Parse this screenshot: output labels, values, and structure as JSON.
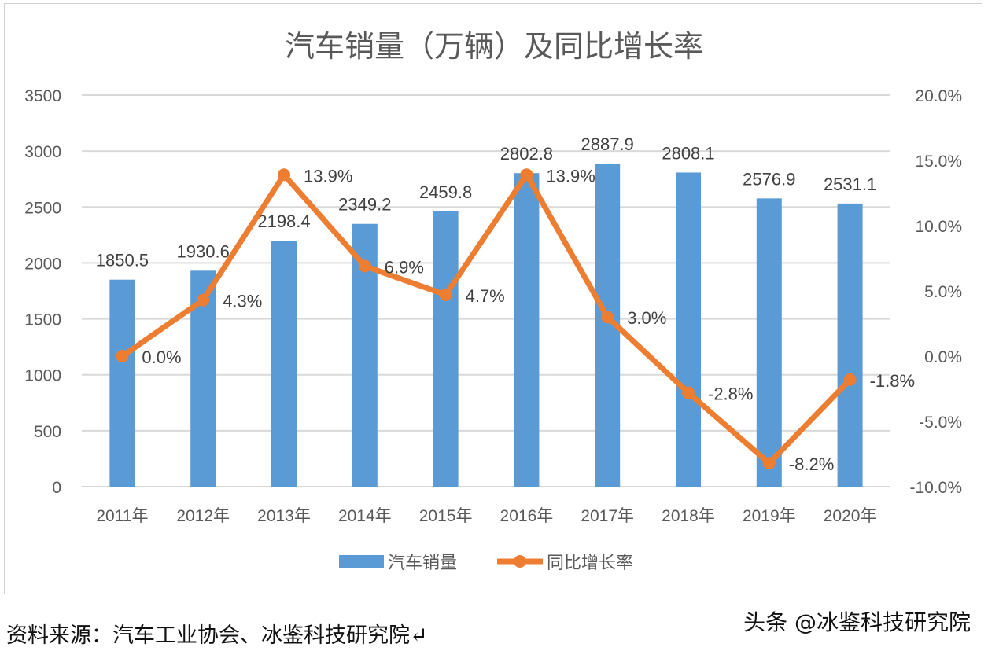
{
  "chart_data": {
    "type": "bar+line",
    "title": "汽车销量（万辆）及同比增长率",
    "categories": [
      "2011年",
      "2012年",
      "2013年",
      "2014年",
      "2015年",
      "2016年",
      "2017年",
      "2018年",
      "2019年",
      "2020年"
    ],
    "series": [
      {
        "name": "汽车销量",
        "type": "bar",
        "axis": "left",
        "color": "#5B9BD5",
        "values": [
          1850.5,
          1930.6,
          2198.4,
          2349.2,
          2459.8,
          2802.8,
          2887.9,
          2808.1,
          2576.9,
          2531.1
        ],
        "labels": [
          "1850.5",
          "1930.6",
          "2198.4",
          "2349.2",
          "2459.8",
          "2802.8",
          "2887.9",
          "2808.1",
          "2576.9",
          "2531.1"
        ]
      },
      {
        "name": "同比增长率",
        "type": "line",
        "axis": "right",
        "color": "#ED7D31",
        "values": [
          0.0,
          4.3,
          13.9,
          6.9,
          4.7,
          13.9,
          3.0,
          -2.8,
          -8.2,
          -1.8
        ],
        "labels": [
          "0.0%",
          "4.3%",
          "13.9%",
          "6.9%",
          "4.7%",
          "13.9%",
          "3.0%",
          "-2.8%",
          "-8.2%",
          "-1.8%"
        ]
      }
    ],
    "left_axis": {
      "ylim": [
        0,
        3500
      ],
      "ticks": [
        "0",
        "500",
        "1000",
        "1500",
        "2000",
        "2500",
        "3000",
        "3500"
      ]
    },
    "right_axis": {
      "ylim": [
        -10,
        20
      ],
      "ticks": [
        "-10.0%",
        "-5.0%",
        "0.0%",
        "5.0%",
        "10.0%",
        "15.0%",
        "20.0%"
      ]
    },
    "grid": true,
    "legend": "bottom"
  },
  "footer": {
    "source": "资料来源：汽车工业协会、冰鉴科技研究院↵",
    "watermark": "头条 @冰鉴科技研究院"
  }
}
